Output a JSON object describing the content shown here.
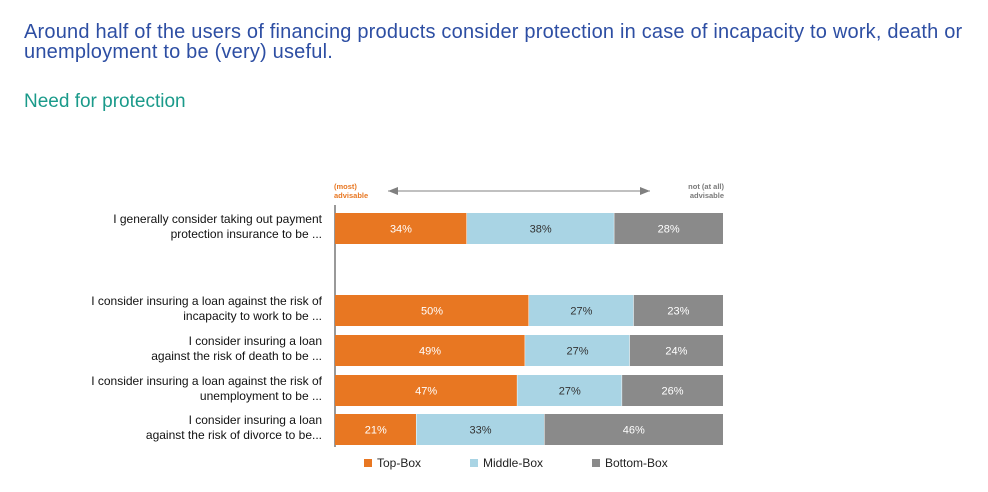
{
  "headline": "Around half of the users of financing products consider protection in case of incapacity to work, death or unemployment to be (very) useful.",
  "subheadline": "Need for protection",
  "scale": {
    "left": "(most)\nadvisable",
    "right": "not (at all)\nadvisable"
  },
  "colors": {
    "top": "#e87722",
    "middle": "#a9d4e4",
    "bottom": "#8a8a8a"
  },
  "chart_data": {
    "type": "bar",
    "orientation": "horizontal",
    "stacked": true,
    "percent": true,
    "categories": [
      "I generally consider taking out payment protection insurance to be ...",
      "I consider insuring a loan against the risk of incapacity to work to be ...",
      "I consider insuring a loan against the risk of death to be ...",
      "I consider insuring a loan against the risk of unemployment to be ...",
      "I consider insuring a loan against the risk of divorce to be..."
    ],
    "category_lines": [
      [
        "I generally consider taking out payment",
        "protection insurance to be ..."
      ],
      [
        "I consider insuring a loan against the risk of",
        "incapacity to work to be ..."
      ],
      [
        "I consider insuring a loan",
        "against the risk of death to be ..."
      ],
      [
        "I consider insuring a loan against the risk of",
        "unemployment to be ..."
      ],
      [
        "I consider insuring a loan",
        "against the risk of divorce to be..."
      ]
    ],
    "series": [
      {
        "name": "Top-Box",
        "values": [
          34,
          50,
          49,
          47,
          21
        ]
      },
      {
        "name": "Middle-Box",
        "values": [
          38,
          27,
          27,
          27,
          33
        ]
      },
      {
        "name": "Bottom-Box",
        "values": [
          28,
          23,
          24,
          26,
          46
        ]
      }
    ],
    "xlim": [
      0,
      100
    ],
    "legend_position": "bottom"
  }
}
